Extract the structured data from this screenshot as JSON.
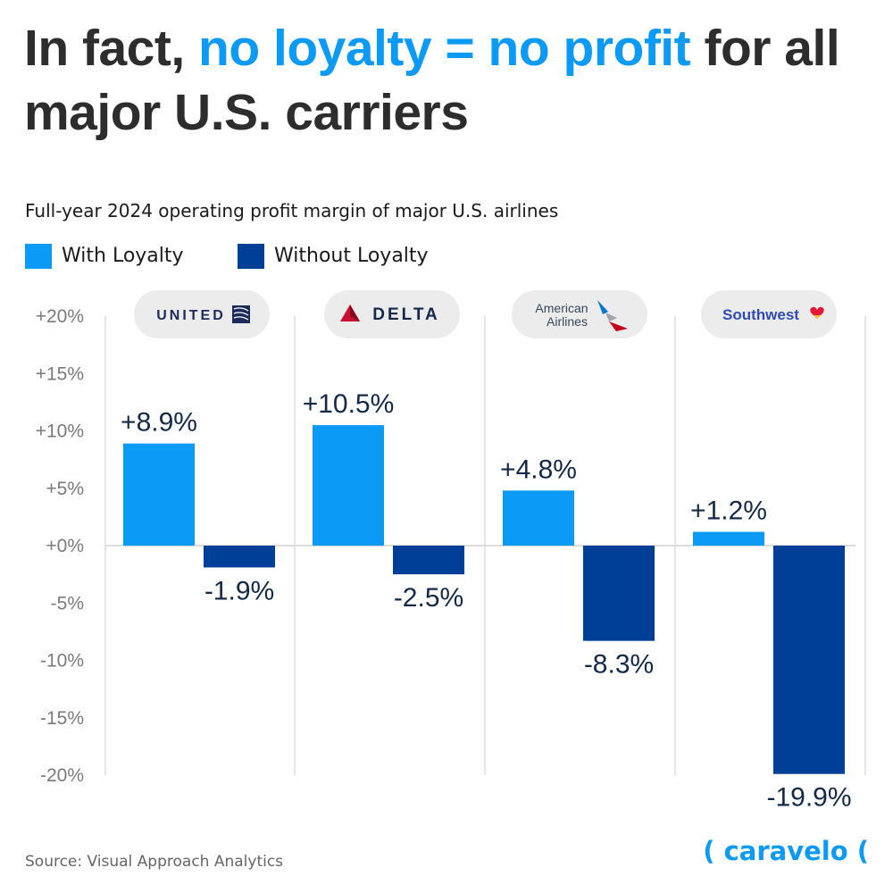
{
  "headline": {
    "part1": "In fact, ",
    "accent": "no loyalty = no profit",
    "part2": " for all major U.S. carriers"
  },
  "chart_data": {
    "type": "bar",
    "title": "Full-year 2024 operating profit margin of major U.S. airlines",
    "categories": [
      "UNITED",
      "DELTA",
      "American Airlines",
      "Southwest"
    ],
    "series": [
      {
        "name": "With Loyalty",
        "color": "#0b9af5",
        "values": [
          8.9,
          10.5,
          4.8,
          1.2
        ],
        "labels": [
          "+8.9%",
          "+10.5%",
          "+4.8%",
          "+1.2%"
        ]
      },
      {
        "name": "Without Loyalty",
        "color": "#003f97",
        "values": [
          -1.9,
          -2.5,
          -8.3,
          -19.9
        ],
        "labels": [
          "-1.9%",
          "-2.5%",
          "-8.3%",
          "-19.9%"
        ]
      }
    ],
    "ylim": [
      -20,
      20
    ],
    "y_ticks": [
      20,
      15,
      10,
      5,
      0,
      -5,
      -10,
      -15,
      -20
    ],
    "y_tick_labels": [
      "+20%",
      "+15%",
      "+10%",
      "+5%",
      "+0%",
      "-5%",
      "-10%",
      "-15%",
      "-20%"
    ],
    "legend": "top-left",
    "grid": false
  },
  "logos": {
    "united": "UNITED",
    "delta": "DELTA",
    "american_line1": "American",
    "american_line2": "Airlines",
    "southwest": "Southwest"
  },
  "footer": {
    "source": "Source: Visual Approach Analytics",
    "brand": "( caravelo ("
  },
  "colors": {
    "accent": "#0b9af5",
    "dark": "#003f97",
    "text_value": "#13294b",
    "headline": "#2d2d2d",
    "axis_text": "#7a7a7a",
    "logo_pill": "#ececec",
    "delta_red": "#c8102e",
    "southwest_blue": "#304cb2"
  }
}
